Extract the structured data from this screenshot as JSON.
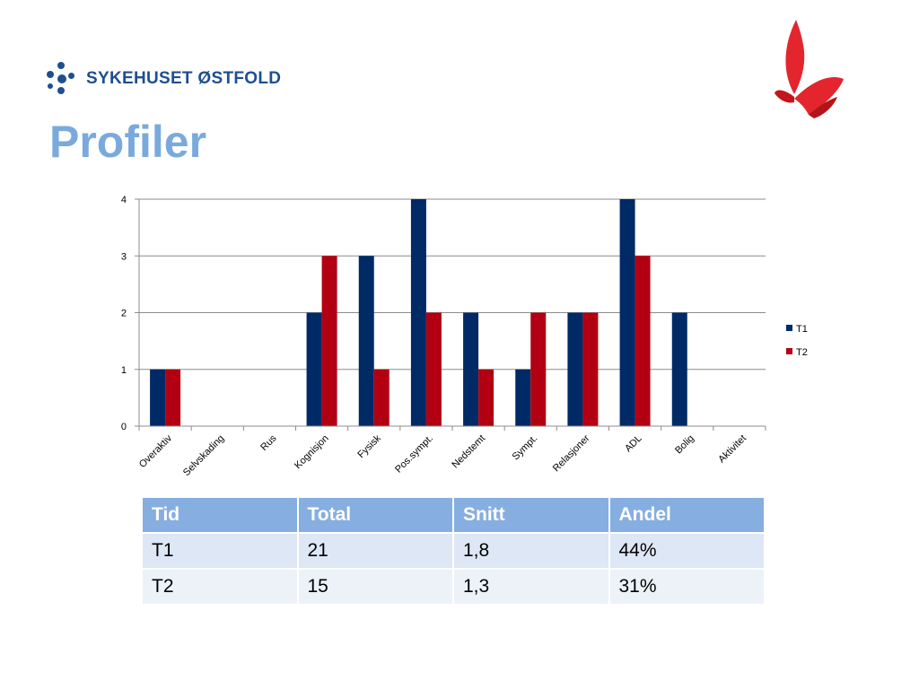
{
  "header": {
    "logo_text": "SYKEHUSET ØSTFOLD",
    "title": "Profiler"
  },
  "icons": {
    "logo": "hospital-dots-logo-icon",
    "brand": "red-flame-logo-icon"
  },
  "colors": {
    "t1": "#002a66",
    "t2": "#b20012",
    "title": "#7aaadc",
    "table_header": "#86aee0"
  },
  "chart_data": {
    "type": "bar",
    "title": "",
    "xlabel": "",
    "ylabel": "",
    "ylim": [
      0,
      4
    ],
    "yticks": [
      0,
      1,
      2,
      3,
      4
    ],
    "grid": true,
    "legend_position": "right",
    "categories": [
      "Overaktiv",
      "Selvskading",
      "Rus",
      "Kognisjon",
      "Fysisk",
      "Pos.sympt.",
      "Nedstemt",
      "Sympt.",
      "Relasjoner",
      "ADL",
      "Bolig",
      "Aktivitet"
    ],
    "series": [
      {
        "name": "T1",
        "values": [
          1,
          0,
          0,
          2,
          3,
          4,
          2,
          1,
          2,
          4,
          2,
          0
        ]
      },
      {
        "name": "T2",
        "values": [
          1,
          0,
          0,
          3,
          1,
          2,
          1,
          2,
          2,
          3,
          0,
          0
        ]
      }
    ]
  },
  "table": {
    "headers": [
      "Tid",
      "Total",
      "Snitt",
      "Andel"
    ],
    "rows": [
      [
        "T1",
        "21",
        "1,8",
        "44%"
      ],
      [
        "T2",
        "15",
        "1,3",
        "31%"
      ]
    ]
  }
}
